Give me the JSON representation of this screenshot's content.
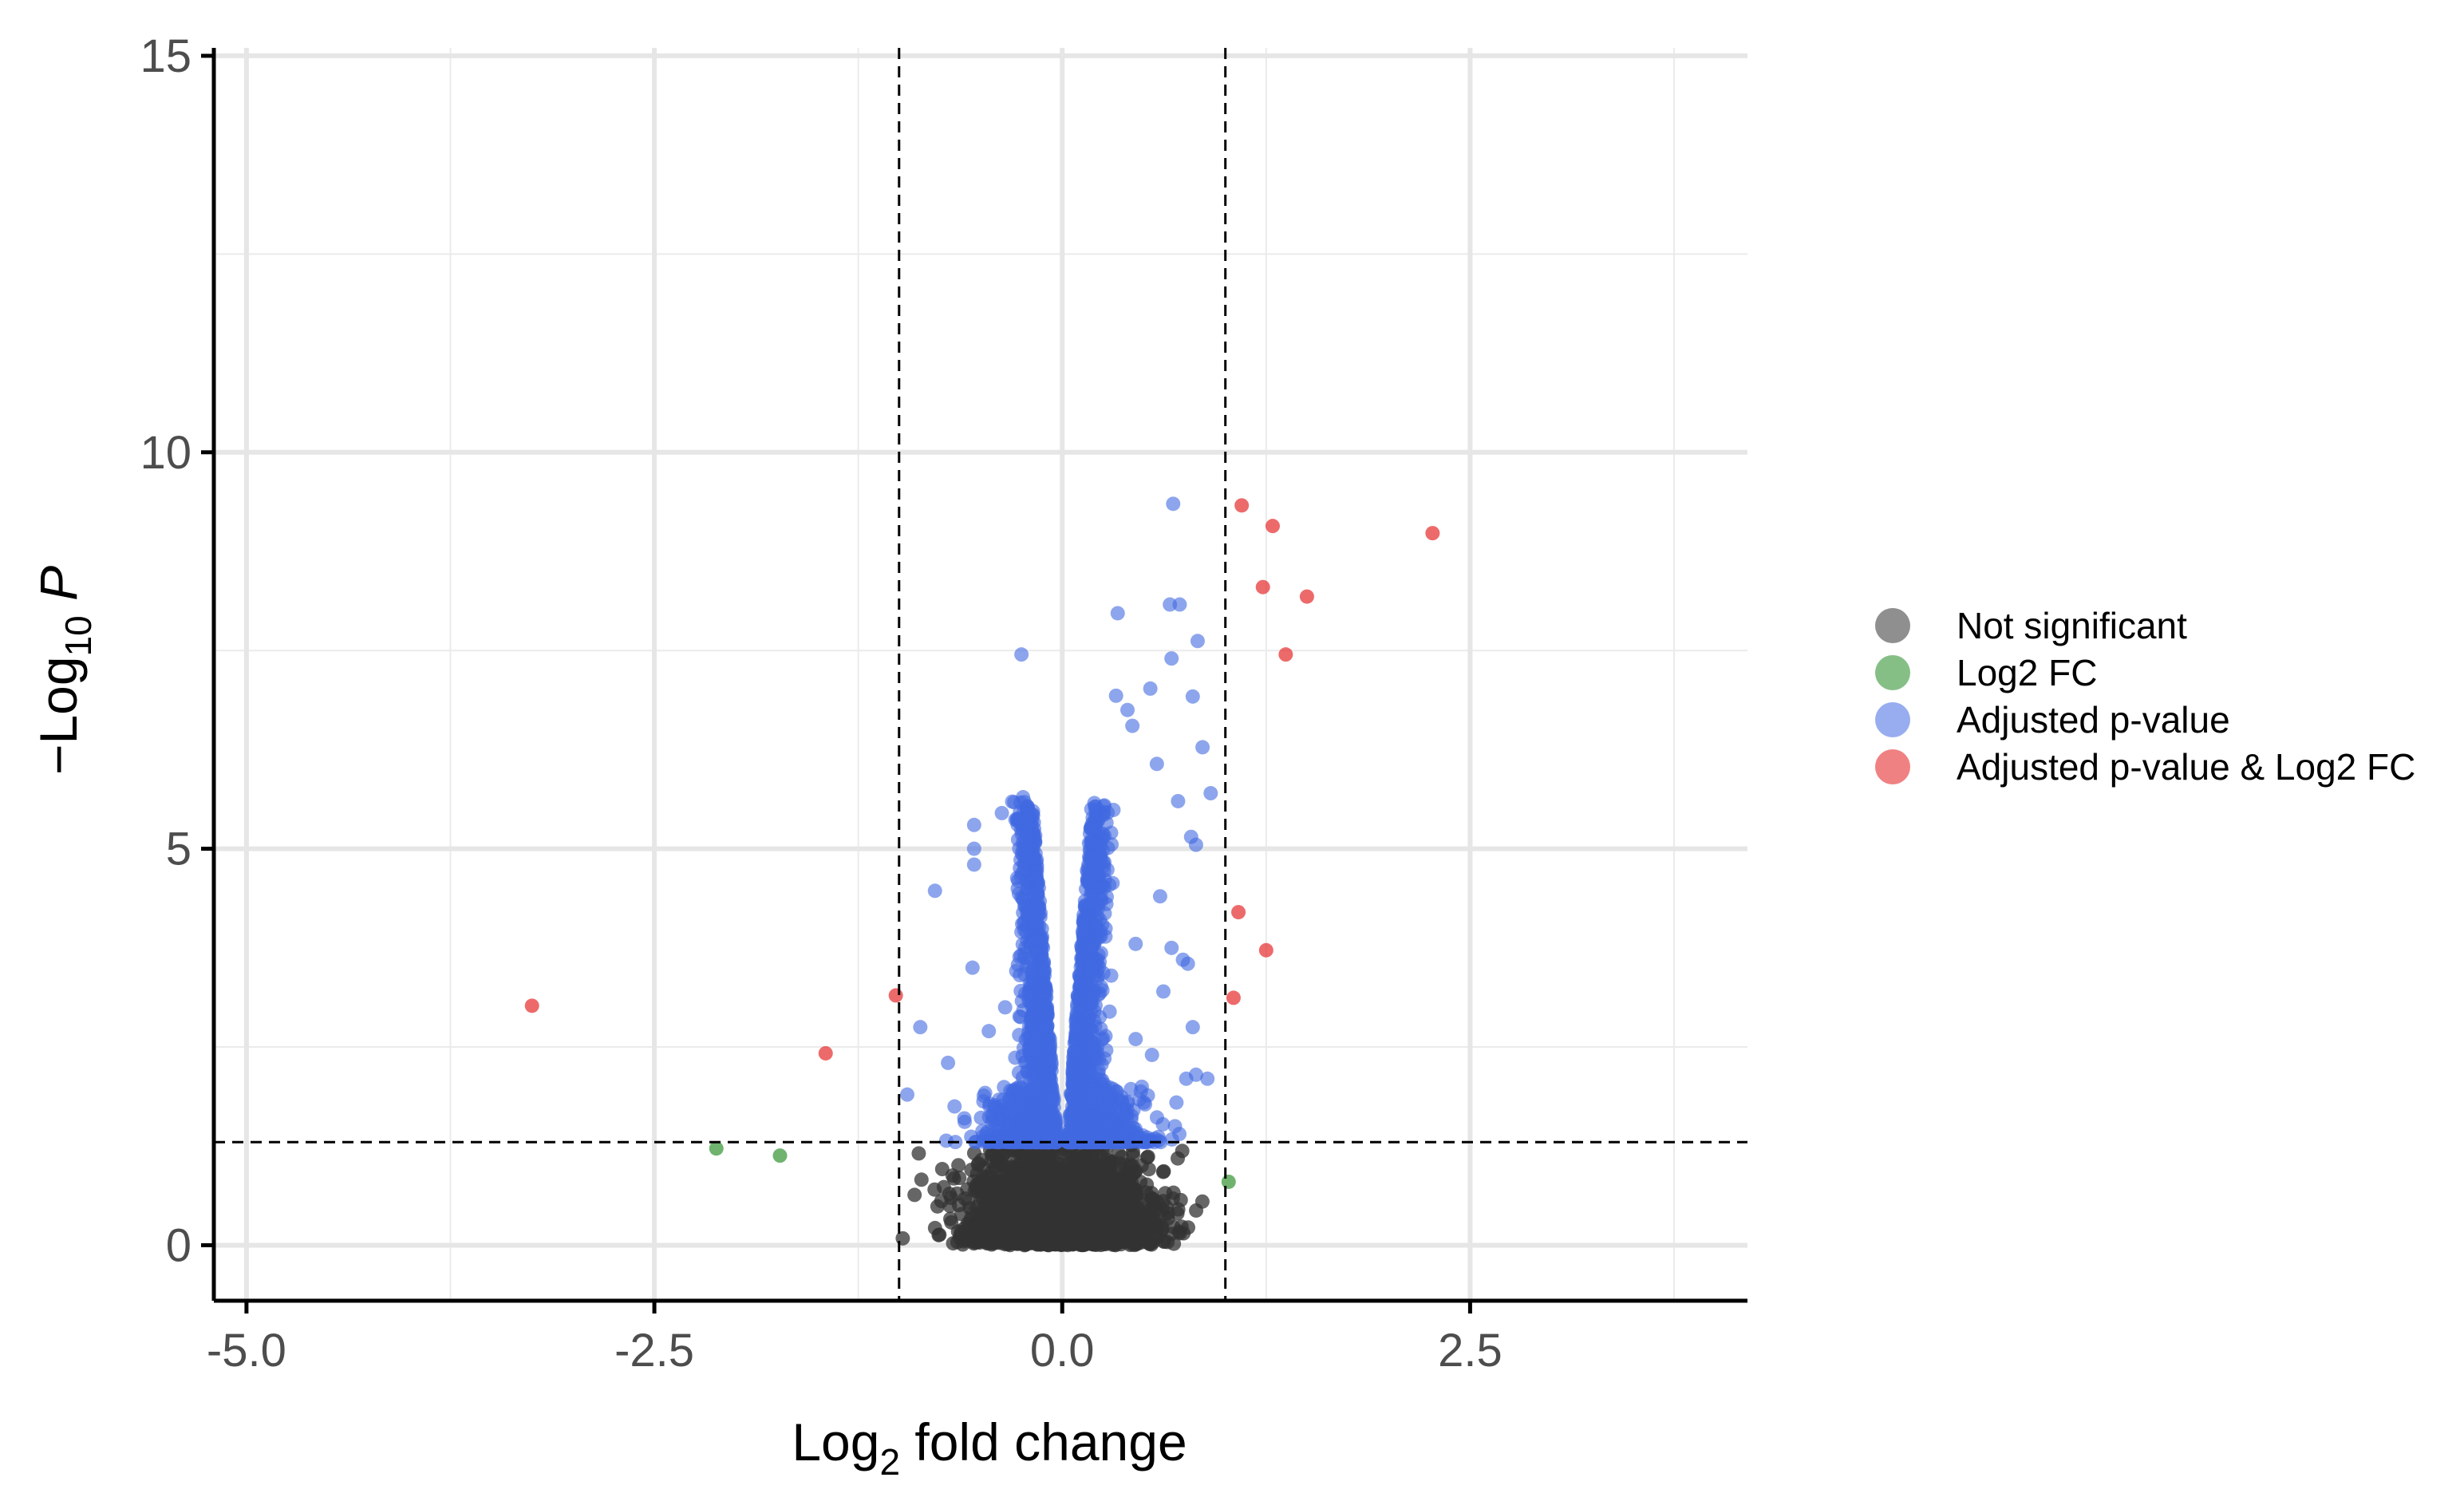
{
  "chart_data": {
    "type": "scatter",
    "title": "",
    "xlabel": "Log2 fold change",
    "ylabel": "−Log10 P",
    "x_label_parts": {
      "pre": "Log",
      "sub": "2",
      "post": " fold change"
    },
    "y_label_parts": {
      "pre": "−Log",
      "sub": "10",
      "post": " P"
    },
    "xlim": [
      -5.2,
      4.2
    ],
    "ylim": [
      -0.7,
      15.1
    ],
    "x_ticks": [
      -5.0,
      -2.5,
      0.0,
      2.5
    ],
    "x_tick_labels": [
      "-5.0",
      "-2.5",
      "0.0",
      "2.5"
    ],
    "y_ticks": [
      0,
      5,
      10,
      15
    ],
    "y_tick_labels": [
      "0",
      "5",
      "10",
      "15"
    ],
    "grid": true,
    "cutoffs": {
      "log2fc": [
        -1.0,
        1.0
      ],
      "neg_log10_p": 1.3
    },
    "legend": {
      "position": "right",
      "entries": [
        {
          "label": "Not significant",
          "color": "#333333"
        },
        {
          "label": "Log2 FC",
          "color": "#228B22"
        },
        {
          "label": "Adjusted p-value",
          "color": "#4169E1"
        },
        {
          "label": "Adjusted p-value & Log2 FC",
          "color": "#E41A1C"
        }
      ]
    },
    "series": [
      {
        "name": "Not significant",
        "color": "#333333",
        "points": []
      },
      {
        "name": "Log2 FC",
        "color": "#228B22",
        "points": [
          [
            -2.12,
            1.22
          ],
          [
            -1.73,
            1.13
          ],
          [
            1.02,
            0.8
          ]
        ]
      },
      {
        "name": "Adjusted p-value",
        "color": "#4169E1",
        "points": [
          [
            0.68,
            9.35
          ],
          [
            -0.25,
            7.45
          ],
          [
            0.34,
            7.97
          ],
          [
            0.66,
            8.08
          ],
          [
            0.72,
            8.08
          ],
          [
            0.83,
            7.62
          ],
          [
            0.67,
            7.4
          ],
          [
            0.54,
            7.02
          ],
          [
            0.33,
            6.93
          ],
          [
            0.4,
            6.75
          ],
          [
            0.8,
            6.92
          ],
          [
            0.43,
            6.55
          ],
          [
            0.86,
            6.28
          ],
          [
            0.58,
            6.07
          ],
          [
            0.91,
            5.7
          ],
          [
            -0.24,
            5.65
          ],
          [
            0.71,
            5.6
          ],
          [
            -0.37,
            5.45
          ],
          [
            0.79,
            5.15
          ],
          [
            -0.54,
            5.3
          ],
          [
            0.82,
            5.05
          ],
          [
            -0.54,
            5.0
          ],
          [
            -0.21,
            5.05
          ],
          [
            -0.54,
            4.8
          ],
          [
            -0.78,
            4.47
          ],
          [
            0.6,
            4.4
          ],
          [
            0.45,
            3.8
          ],
          [
            0.67,
            3.75
          ],
          [
            0.74,
            3.6
          ],
          [
            0.77,
            3.55
          ],
          [
            -0.55,
            3.5
          ],
          [
            -0.87,
            2.75
          ],
          [
            0.62,
            3.2
          ],
          [
            0.8,
            2.75
          ],
          [
            0.76,
            2.1
          ],
          [
            0.82,
            2.15
          ],
          [
            -0.95,
            1.9
          ],
          [
            -0.7,
            2.3
          ],
          [
            -0.66,
            1.75
          ],
          [
            0.89,
            2.1
          ],
          [
            -0.45,
            2.7
          ],
          [
            0.45,
            2.6
          ],
          [
            0.7,
            1.8
          ],
          [
            -0.35,
            3.0
          ],
          [
            0.3,
            3.4
          ],
          [
            0.55,
            2.4
          ],
          [
            -0.6,
            1.6
          ],
          [
            0.5,
            1.8
          ]
        ]
      },
      {
        "name": "Adjusted p-value & Log2 FC",
        "color": "#E41A1C",
        "points": [
          [
            1.1,
            9.33
          ],
          [
            1.29,
            9.07
          ],
          [
            2.27,
            8.98
          ],
          [
            1.23,
            8.3
          ],
          [
            1.5,
            8.18
          ],
          [
            1.37,
            7.45
          ],
          [
            1.08,
            4.2
          ],
          [
            1.25,
            3.72
          ],
          [
            -1.02,
            3.15
          ],
          [
            1.05,
            3.12
          ],
          [
            -3.25,
            3.02
          ],
          [
            -1.45,
            2.42
          ]
        ]
      }
    ]
  }
}
